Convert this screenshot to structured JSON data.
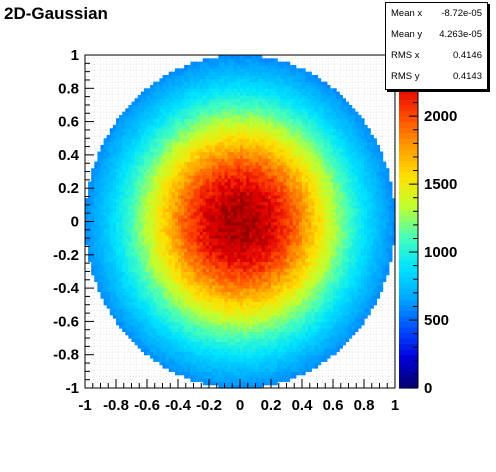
{
  "title": "2D-Gaussian",
  "stats": [
    {
      "label": "Mean x",
      "value": "-8.72e-05"
    },
    {
      "label": "Mean y",
      "value": "4.263e-05"
    },
    {
      "label": "RMS x",
      "value": "0.4146"
    },
    {
      "label": "RMS y",
      "value": "0.4143"
    }
  ],
  "chart_data": {
    "type": "heatmap",
    "title": "2D-Gaussian",
    "xlabel": "",
    "ylabel": "",
    "xlim": [
      -1,
      1
    ],
    "ylim": [
      -1,
      1
    ],
    "x_ticks": [
      "-1",
      "-0.8",
      "-0.6",
      "-0.4",
      "-0.2",
      "0",
      "0.2",
      "0.4",
      "0.6",
      "0.8",
      "1"
    ],
    "y_ticks": [
      "-1",
      "-0.8",
      "-0.6",
      "-0.4",
      "-0.2",
      "0",
      "0.2",
      "0.4",
      "0.6",
      "0.8",
      "1"
    ],
    "colorbar_ticks": [
      "0",
      "500",
      "1000",
      "1500",
      "2000"
    ],
    "z_range": [
      0,
      2450
    ],
    "peak_value": 2400,
    "edge_value": 600,
    "mask_radius": 1.0,
    "sigma": 0.5,
    "colormap": [
      "#08006b",
      "#0000d8",
      "#0050ff",
      "#00a8ff",
      "#00e4ff",
      "#48ffb8",
      "#c0ff30",
      "#ffe000",
      "#ff9a00",
      "#ff4800",
      "#e00000",
      "#900000"
    ]
  }
}
